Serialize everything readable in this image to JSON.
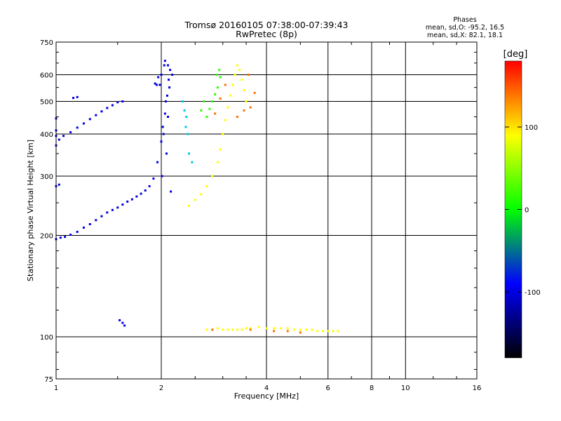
{
  "header": {
    "title": "Tromsø 20160105 07:38:00-07:39:43",
    "subtitle": "RwPretec (8p)",
    "stats_title": "Phases",
    "stats_line1": "mean, sd,O: -95.2, 16.5",
    "stats_line2": "mean, sd,X:  82.1, 18.1"
  },
  "colorbar": {
    "unit": "[deg]",
    "ticks": [
      100,
      0,
      -100
    ],
    "range": [
      -180,
      180
    ]
  },
  "chart_data": {
    "type": "scatter",
    "xlabel": "Frequency [MHz]",
    "ylabel": "Stationary phase Virtual Height [km]",
    "xscale": "log",
    "yscale": "log",
    "xlim": [
      1,
      16
    ],
    "ylim": [
      75,
      750
    ],
    "xticks": [
      1,
      2,
      4,
      6,
      8,
      10,
      16
    ],
    "xtick_labels": [
      "1",
      "2",
      "4",
      "6",
      "8",
      "10",
      "16"
    ],
    "yticks": [
      75,
      100,
      200,
      300,
      400,
      500,
      600,
      750
    ],
    "ytick_labels": [
      "75",
      "100",
      "200",
      "300",
      "400",
      "500",
      "600",
      "750"
    ],
    "grid": true,
    "series": [
      {
        "phase": -100,
        "points": [
          [
            1.0,
            195
          ],
          [
            1.03,
            197
          ],
          [
            1.06,
            198
          ],
          [
            1.1,
            201
          ],
          [
            1.15,
            205
          ],
          [
            1.2,
            211
          ],
          [
            1.25,
            216
          ],
          [
            1.3,
            222
          ],
          [
            1.35,
            228
          ],
          [
            1.4,
            234
          ],
          [
            1.45,
            238
          ],
          [
            1.5,
            242
          ],
          [
            1.55,
            247
          ],
          [
            1.6,
            252
          ],
          [
            1.65,
            256
          ],
          [
            1.7,
            261
          ],
          [
            1.75,
            266
          ],
          [
            1.8,
            272
          ],
          [
            1.85,
            280
          ],
          [
            1.9,
            295
          ],
          [
            1.95,
            330
          ],
          [
            2.0,
            380
          ],
          [
            2.02,
            420
          ],
          [
            2.05,
            460
          ],
          [
            2.08,
            520
          ],
          [
            2.1,
            580
          ],
          [
            2.12,
            620
          ],
          [
            2.04,
            640
          ],
          [
            2.0,
            600
          ],
          [
            2.06,
            500
          ],
          [
            2.03,
            400
          ],
          [
            2.07,
            350
          ],
          [
            2.01,
            300
          ],
          [
            2.09,
            450
          ],
          [
            2.11,
            550
          ],
          [
            2.13,
            270
          ],
          [
            1.98,
            560
          ],
          [
            1.96,
            590
          ],
          [
            1.94,
            560
          ],
          [
            1.92,
            565
          ],
          [
            1.0,
            280
          ],
          [
            1.02,
            283
          ],
          [
            1.0,
            370
          ],
          [
            1.02,
            385
          ],
          [
            1.05,
            395
          ],
          [
            1.1,
            405
          ],
          [
            1.15,
            418
          ],
          [
            1.2,
            430
          ],
          [
            1.25,
            443
          ],
          [
            1.3,
            455
          ],
          [
            1.35,
            467
          ],
          [
            1.4,
            478
          ],
          [
            1.45,
            487
          ],
          [
            1.5,
            497
          ],
          [
            1.55,
            500
          ],
          [
            1.0,
            410
          ],
          [
            1.0,
            445
          ],
          [
            1.12,
            512
          ],
          [
            1.15,
            515
          ],
          [
            1.0,
            395
          ],
          [
            1.55,
            110
          ],
          [
            1.52,
            112
          ],
          [
            1.57,
            108
          ],
          [
            2.05,
            660
          ],
          [
            2.09,
            640
          ],
          [
            2.15,
            600
          ]
        ]
      },
      {
        "phase": -50,
        "points": [
          [
            2.35,
            420
          ],
          [
            2.38,
            400
          ],
          [
            2.4,
            350
          ],
          [
            2.45,
            330
          ],
          [
            2.3,
            500
          ],
          [
            2.33,
            470
          ],
          [
            2.36,
            450
          ]
        ]
      },
      {
        "phase": 15,
        "points": [
          [
            2.7,
            450
          ],
          [
            2.75,
            475
          ],
          [
            2.8,
            500
          ],
          [
            2.85,
            525
          ],
          [
            2.9,
            550
          ],
          [
            2.95,
            590
          ],
          [
            2.65,
            500
          ],
          [
            2.6,
            470
          ],
          [
            2.93,
            620
          ],
          [
            2.88,
            600
          ]
        ]
      },
      {
        "phase": 90,
        "points": [
          [
            2.4,
            245
          ],
          [
            2.5,
            255
          ],
          [
            2.6,
            265
          ],
          [
            2.7,
            280
          ],
          [
            2.8,
            300
          ],
          [
            2.9,
            330
          ],
          [
            2.95,
            360
          ],
          [
            3.0,
            400
          ],
          [
            3.05,
            440
          ],
          [
            3.1,
            480
          ],
          [
            3.15,
            520
          ],
          [
            3.2,
            560
          ],
          [
            3.25,
            600
          ],
          [
            3.3,
            640
          ],
          [
            3.35,
            620
          ],
          [
            3.4,
            580
          ],
          [
            3.45,
            540
          ],
          [
            3.5,
            500
          ],
          [
            3.0,
            105
          ],
          [
            3.1,
            105
          ],
          [
            3.2,
            105
          ],
          [
            3.3,
            105
          ],
          [
            3.4,
            105
          ],
          [
            3.5,
            106
          ],
          [
            3.6,
            106
          ],
          [
            3.8,
            107
          ],
          [
            4.0,
            106
          ],
          [
            4.2,
            106
          ],
          [
            4.4,
            106
          ],
          [
            4.6,
            106
          ],
          [
            4.8,
            105
          ],
          [
            5.0,
            105
          ],
          [
            5.2,
            105
          ],
          [
            5.4,
            105
          ],
          [
            5.6,
            104
          ],
          [
            5.8,
            104
          ],
          [
            6.0,
            104
          ],
          [
            6.2,
            104
          ],
          [
            6.4,
            104
          ],
          [
            2.7,
            105
          ],
          [
            2.8,
            105
          ],
          [
            2.9,
            106
          ]
        ]
      },
      {
        "phase": 140,
        "points": [
          [
            2.85,
            460
          ],
          [
            2.95,
            510
          ],
          [
            3.05,
            560
          ],
          [
            3.3,
            450
          ],
          [
            3.45,
            470
          ],
          [
            3.55,
            600
          ],
          [
            3.6,
            480
          ],
          [
            3.7,
            530
          ],
          [
            2.8,
            105
          ],
          [
            3.6,
            105
          ],
          [
            4.2,
            104
          ],
          [
            4.6,
            104
          ],
          [
            5.0,
            103
          ]
        ]
      }
    ]
  }
}
